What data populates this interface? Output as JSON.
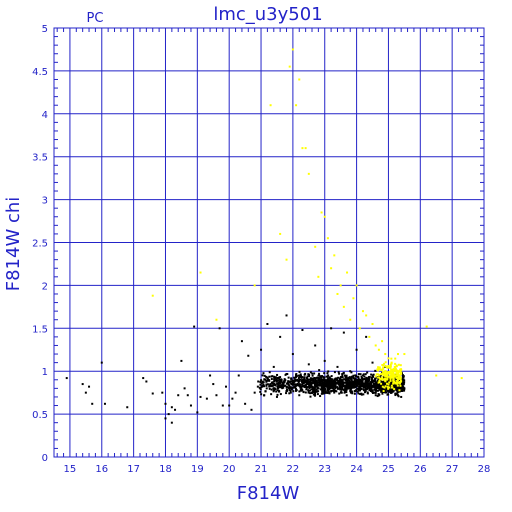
{
  "chart_data": {
    "type": "scatter",
    "title": "lmc_u3y501",
    "annotation": "PC",
    "xlabel": "F814W",
    "ylabel": "F814W  chi",
    "xlim": [
      14.5,
      28
    ],
    "ylim": [
      0,
      5
    ],
    "xticks": [
      "15",
      "16",
      "17",
      "18",
      "19",
      "20",
      "21",
      "22",
      "23",
      "24",
      "25",
      "26",
      "27",
      "28"
    ],
    "yticks": [
      "0",
      "0.5",
      "1",
      "1.5",
      "2",
      "2.5",
      "3",
      "3.5",
      "4",
      "4.5",
      "5"
    ],
    "grid": true,
    "colors": {
      "axes": "#2323c8",
      "grid": "#2323c8",
      "black_series": "#000000",
      "yellow_series": "#ffff00"
    },
    "series": [
      {
        "color": "black",
        "points": [
          [
            14.9,
            0.92
          ],
          [
            15.4,
            0.85
          ],
          [
            15.5,
            0.75
          ],
          [
            15.6,
            0.82
          ],
          [
            15.7,
            0.62
          ],
          [
            16.0,
            1.1
          ],
          [
            16.1,
            0.62
          ],
          [
            16.8,
            0.58
          ],
          [
            17.3,
            0.92
          ],
          [
            17.4,
            0.88
          ],
          [
            17.6,
            0.74
          ],
          [
            17.9,
            0.75
          ],
          [
            18.0,
            0.62
          ],
          [
            18.0,
            0.45
          ],
          [
            18.1,
            0.5
          ],
          [
            18.2,
            0.58
          ],
          [
            18.2,
            0.4
          ],
          [
            18.3,
            0.55
          ],
          [
            18.4,
            0.72
          ],
          [
            18.5,
            1.12
          ],
          [
            18.6,
            0.8
          ],
          [
            18.7,
            0.72
          ],
          [
            18.8,
            0.6
          ],
          [
            18.9,
            1.52
          ],
          [
            19.0,
            0.52
          ],
          [
            19.1,
            0.7
          ],
          [
            19.3,
            0.68
          ],
          [
            19.4,
            0.95
          ],
          [
            19.5,
            0.85
          ],
          [
            19.6,
            0.72
          ],
          [
            19.7,
            1.5
          ],
          [
            19.8,
            0.6
          ],
          [
            19.9,
            0.82
          ],
          [
            20.0,
            0.6
          ],
          [
            20.1,
            0.68
          ],
          [
            20.2,
            0.75
          ],
          [
            20.3,
            0.95
          ],
          [
            20.4,
            1.35
          ],
          [
            20.5,
            0.62
          ],
          [
            20.6,
            1.18
          ],
          [
            20.7,
            0.55
          ],
          [
            20.8,
            0.75
          ],
          [
            20.9,
            0.82
          ],
          [
            21.0,
            1.25
          ],
          [
            21.1,
            0.72
          ],
          [
            21.2,
            1.55
          ],
          [
            21.2,
            0.92
          ],
          [
            21.3,
            0.85
          ],
          [
            21.4,
            1.05
          ],
          [
            21.5,
            0.7
          ],
          [
            21.6,
            1.4
          ],
          [
            21.7,
            0.85
          ],
          [
            21.8,
            1.65
          ],
          [
            21.9,
            0.78
          ],
          [
            22.0,
            1.2
          ],
          [
            22.1,
            0.95
          ],
          [
            22.2,
            0.72
          ],
          [
            22.3,
            1.48
          ],
          [
            22.4,
            0.88
          ],
          [
            22.5,
            1.08
          ],
          [
            22.6,
            0.75
          ],
          [
            22.7,
            1.3
          ],
          [
            22.8,
            0.92
          ],
          [
            22.9,
            0.8
          ],
          [
            23.0,
            1.12
          ],
          [
            23.1,
            0.85
          ],
          [
            23.2,
            1.5
          ],
          [
            23.3,
            0.78
          ],
          [
            23.4,
            1.05
          ],
          [
            23.5,
            0.9
          ],
          [
            23.6,
            1.45
          ],
          [
            23.7,
            0.82
          ],
          [
            23.8,
            1.0
          ],
          [
            23.9,
            0.88
          ],
          [
            24.0,
            1.25
          ],
          [
            24.1,
            0.8
          ],
          [
            24.2,
            0.95
          ],
          [
            24.3,
            1.4
          ],
          [
            24.4,
            0.85
          ],
          [
            24.5,
            1.1
          ],
          [
            24.6,
            0.78
          ],
          [
            24.7,
            0.9
          ],
          [
            24.8,
            0.8
          ],
          [
            24.9,
            1.05
          ],
          [
            25.0,
            0.82
          ],
          [
            25.1,
            0.75
          ],
          [
            25.2,
            0.88
          ],
          [
            25.3,
            0.72
          ],
          [
            25.3,
            0.95
          ],
          [
            25.4,
            0.7
          ]
        ],
        "dense_cluster": {
          "x_range": [
            20.9,
            25.5
          ],
          "y_center": 0.85,
          "y_spread": 0.12,
          "count": 1500
        }
      },
      {
        "color": "yellow",
        "points": [
          [
            17.6,
            1.88
          ],
          [
            19.1,
            2.15
          ],
          [
            19.6,
            1.6
          ],
          [
            20.8,
            2.0
          ],
          [
            21.3,
            4.1
          ],
          [
            21.6,
            2.6
          ],
          [
            21.8,
            2.3
          ],
          [
            21.9,
            4.55
          ],
          [
            22.0,
            4.75
          ],
          [
            22.1,
            4.1
          ],
          [
            22.2,
            4.4
          ],
          [
            22.3,
            3.6
          ],
          [
            22.4,
            3.6
          ],
          [
            22.5,
            3.3
          ],
          [
            22.7,
            2.45
          ],
          [
            22.8,
            2.1
          ],
          [
            22.9,
            2.85
          ],
          [
            23.0,
            2.8
          ],
          [
            23.1,
            2.55
          ],
          [
            23.2,
            2.2
          ],
          [
            23.3,
            2.35
          ],
          [
            23.4,
            1.9
          ],
          [
            23.5,
            2.0
          ],
          [
            23.6,
            1.75
          ],
          [
            23.7,
            2.15
          ],
          [
            23.8,
            1.6
          ],
          [
            23.9,
            1.85
          ],
          [
            24.0,
            2.0
          ],
          [
            24.1,
            1.5
          ],
          [
            24.2,
            1.7
          ],
          [
            24.3,
            1.65
          ],
          [
            24.4,
            1.4
          ],
          [
            24.5,
            1.55
          ],
          [
            24.6,
            1.3
          ],
          [
            24.7,
            1.25
          ],
          [
            24.8,
            1.35
          ],
          [
            24.9,
            1.2
          ],
          [
            25.0,
            1.15
          ],
          [
            25.1,
            1.1
          ],
          [
            25.2,
            1.05
          ],
          [
            25.3,
            1.2
          ],
          [
            25.5,
            1.2
          ],
          [
            26.2,
            1.52
          ],
          [
            26.5,
            0.95
          ],
          [
            27.3,
            0.92
          ]
        ],
        "dense_cluster": {
          "x_range": [
            24.6,
            25.4
          ],
          "y_center": 0.95,
          "y_spread": 0.15,
          "count": 200
        }
      }
    ]
  }
}
